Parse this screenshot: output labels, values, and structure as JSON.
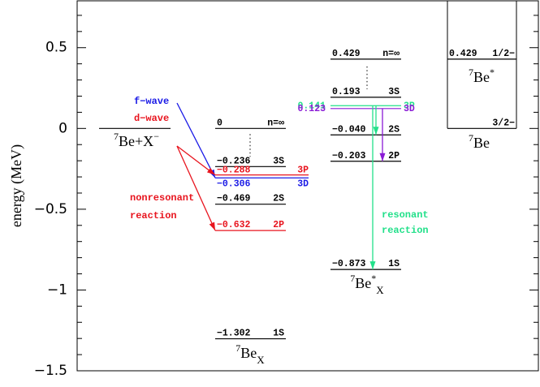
{
  "chart_data": {
    "type": "level",
    "ylabel": "energy (MeV)",
    "ylim": [
      -1.5,
      0.79
    ],
    "yticks": [
      {
        "value": 0.5,
        "label": "0.5"
      },
      0,
      {
        "value": -0.5,
        "label": "−0.5"
      },
      {
        "value": -1,
        "label": "−1"
      },
      {
        "value": -1.5,
        "label": "−1.5"
      }
    ],
    "yminorticks": [
      0.7,
      0.6,
      0.4,
      0.3,
      0.2,
      0.1,
      -0.1,
      -0.2,
      -0.3,
      -0.4,
      -0.6,
      -0.7,
      -0.8,
      -0.9,
      -1.1,
      -1.2,
      -1.3,
      -1.4
    ],
    "groups": [
      {
        "name": {
          "pre": "7",
          "main": "Be+X",
          "sup": "−"
        },
        "levels": [
          {
            "value": 0
          }
        ]
      },
      {
        "name": {
          "pre": "7",
          "main": "Be",
          "sub": "X"
        },
        "levels": [
          {
            "value": 0,
            "value_label": "0",
            "state": "n=∞"
          },
          {
            "value": -0.236,
            "value_label": "−0.236",
            "state": "3S"
          },
          {
            "value": -0.288,
            "value_label": "−0.288",
            "state": "3P",
            "color": "#e8141e"
          },
          {
            "value": -0.306,
            "value_label": "−0.306",
            "state": "3D",
            "color": "#1a1ae6"
          },
          {
            "value": -0.469,
            "value_label": "−0.469",
            "state": "2S"
          },
          {
            "value": -0.632,
            "value_label": "−0.632",
            "state": "2P",
            "color": "#e8141e"
          },
          {
            "value": -1.302,
            "value_label": "−1.302",
            "state": "1S"
          }
        ]
      },
      {
        "name": {
          "pre": "7",
          "main": "Be",
          "sup": "*",
          "sub": "X"
        },
        "levels": [
          {
            "value": 0.429,
            "value_label": "0.429",
            "state": "n=∞"
          },
          {
            "value": 0.193,
            "value_label": "0.193",
            "state": "3S"
          },
          {
            "value": 0.141,
            "value_label": "0.141",
            "state": "3P",
            "color": "#22e08a"
          },
          {
            "value": 0.123,
            "value_label": "0.123",
            "state": "3D",
            "color": "#8a1ad6"
          },
          {
            "value": -0.04,
            "value_label": "−0.040",
            "state": "2S"
          },
          {
            "value": -0.203,
            "value_label": "−0.203",
            "state": "2P"
          },
          {
            "value": -0.873,
            "value_label": "−0.873",
            "state": "1S"
          }
        ]
      },
      {
        "name": {
          "pre": "7",
          "main": "Be"
        },
        "inner_name": {
          "pre": "7",
          "main": "Be",
          "sup": "*"
        },
        "levels": [
          {
            "value": 0.429,
            "value_label": "0.429",
            "state": "1/2−"
          },
          {
            "value": 0,
            "state": "3/2−"
          }
        ]
      }
    ],
    "annotations": {
      "f_wave": "f−wave",
      "d_wave": "d−wave",
      "nonresonant": [
        "nonresonant",
        "reaction"
      ],
      "resonant": [
        "resonant",
        "reaction"
      ]
    }
  }
}
